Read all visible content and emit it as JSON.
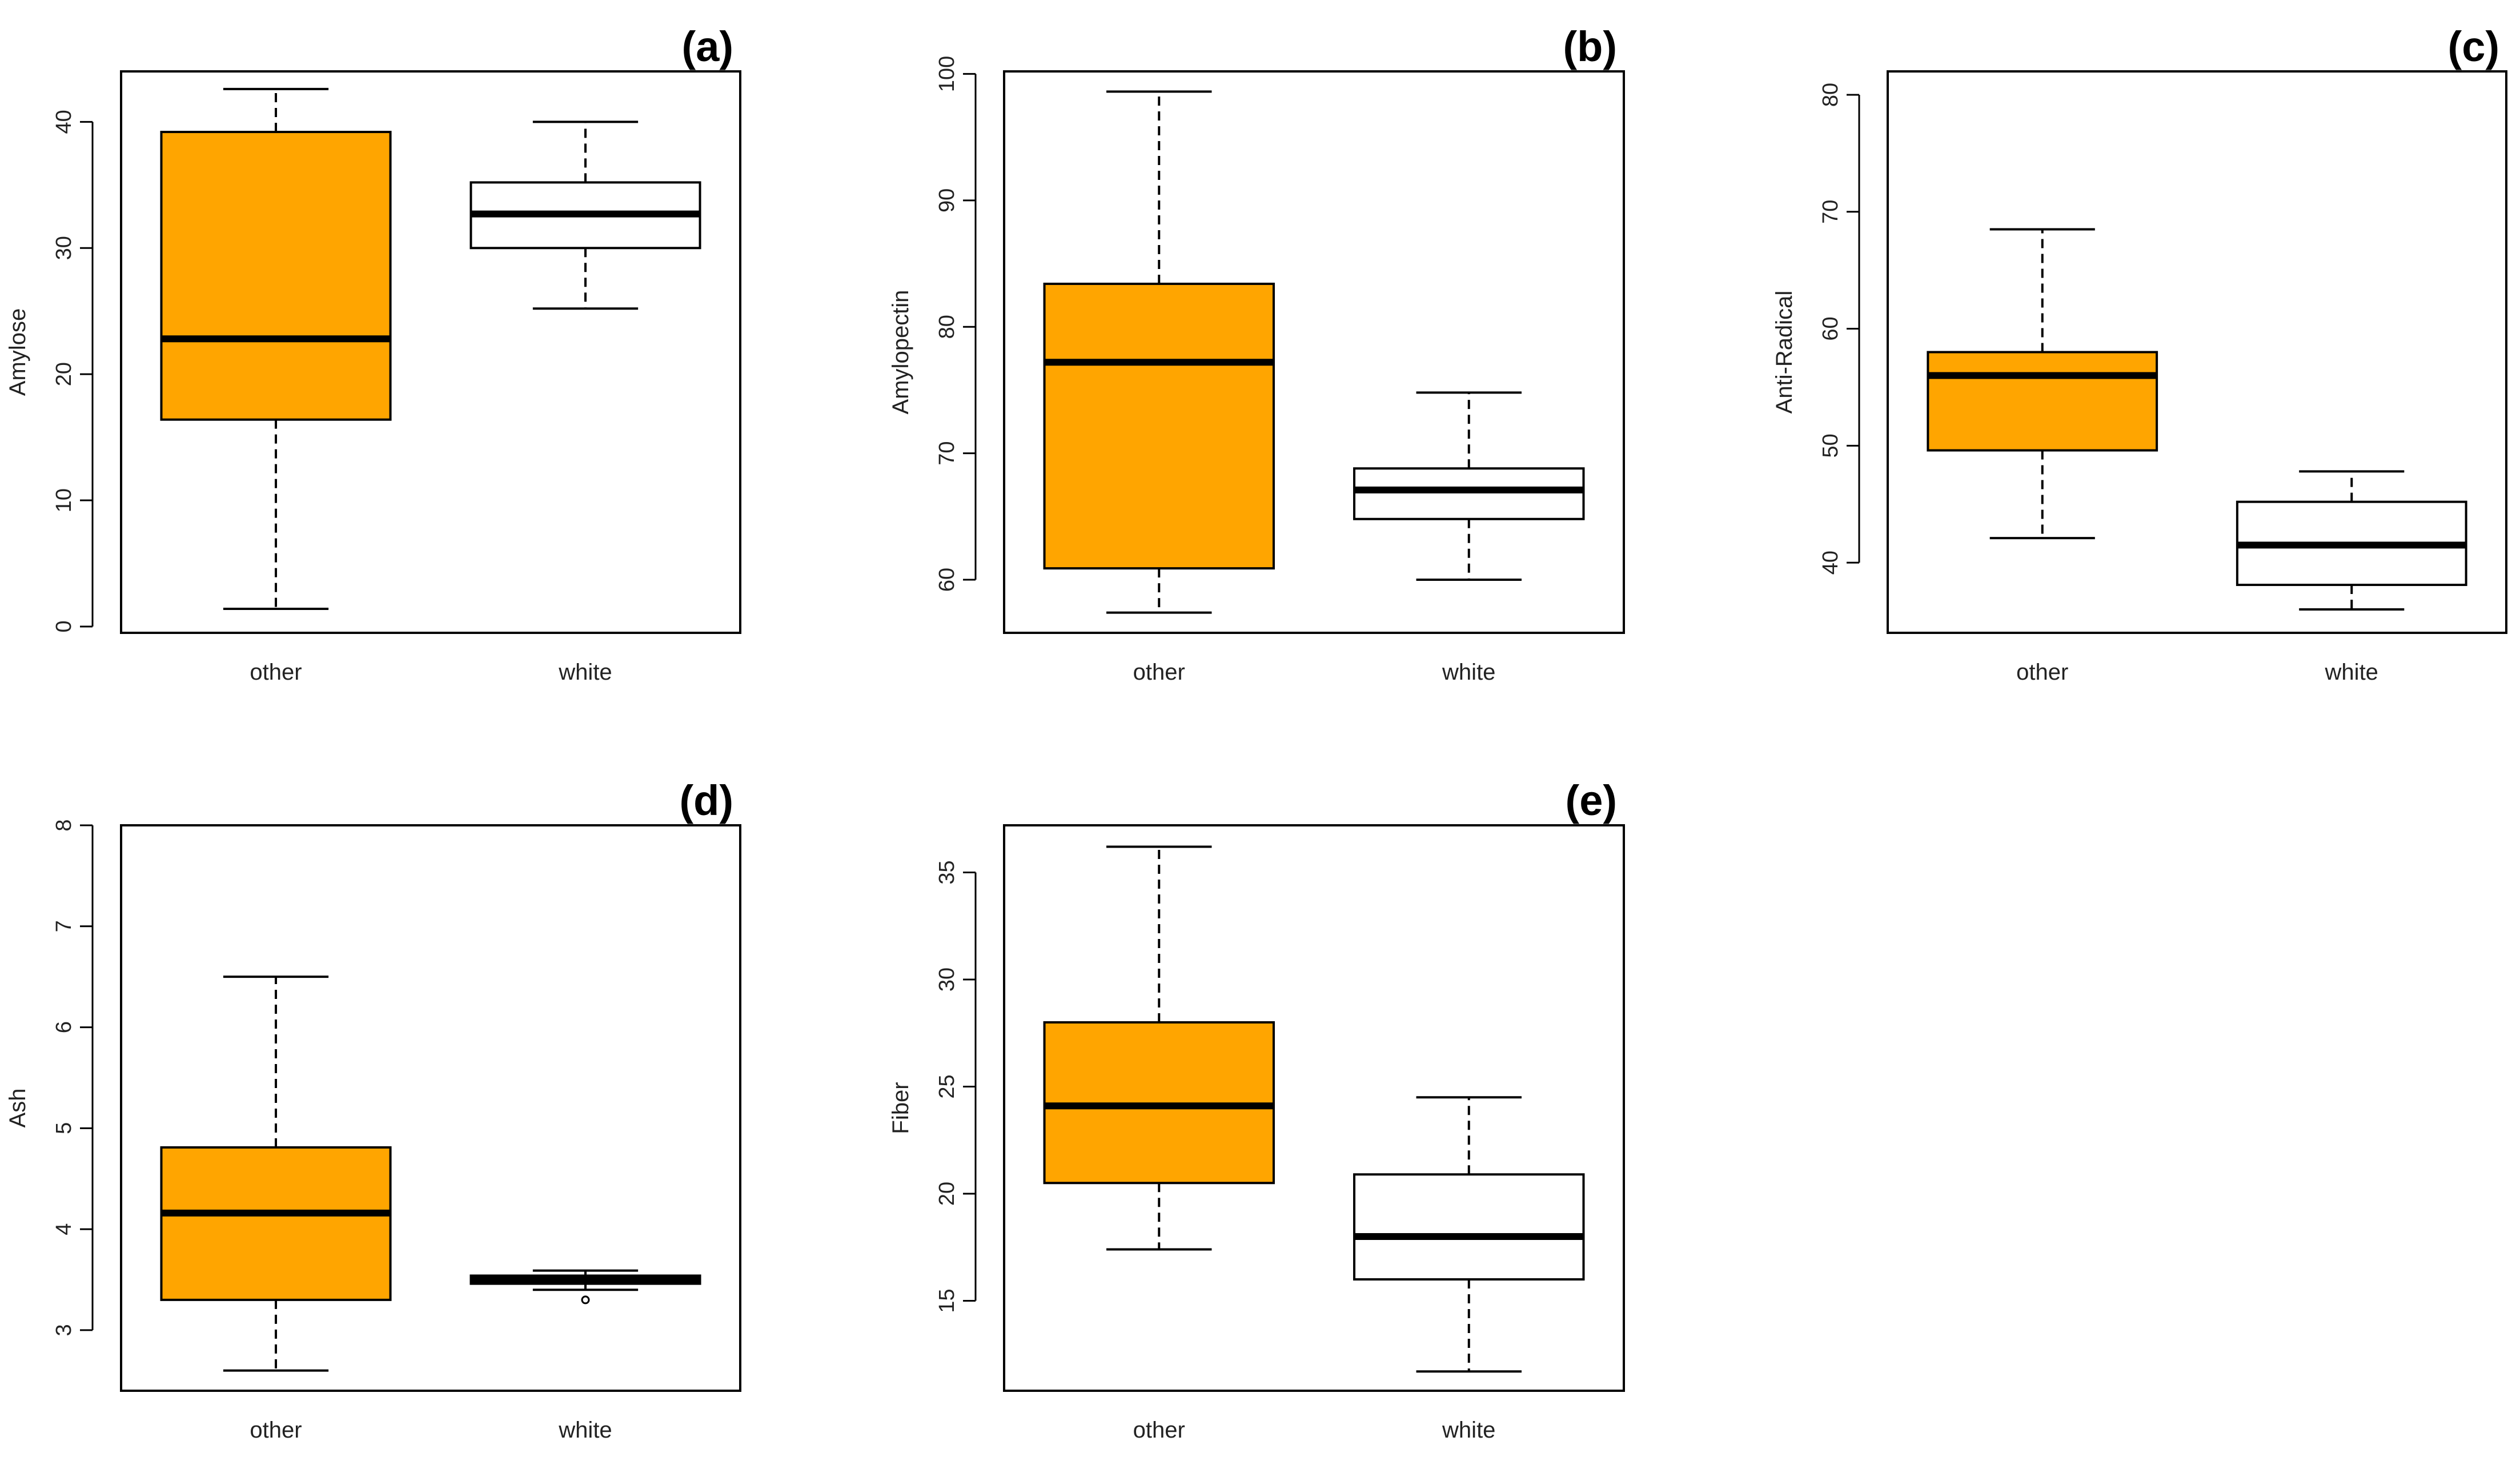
{
  "figure": {
    "colors": {
      "other_fill": "#FFA500",
      "white_fill": "#FFFFFF",
      "line": "#000000"
    }
  },
  "chart_data": [
    {
      "panel": "(a)",
      "type": "boxplot",
      "ylabel": "Amylose",
      "title": "",
      "xlabel": "",
      "categories": [
        "other",
        "white"
      ],
      "ylim": [
        -0.5,
        44
      ],
      "yticks": [
        0,
        10,
        20,
        30,
        40
      ],
      "boxes": [
        {
          "name": "other",
          "lower_whisker": 1.4,
          "q1": 16.4,
          "median": 22.8,
          "q3": 39.2,
          "upper_whisker": 42.6,
          "outliers": []
        },
        {
          "name": "white",
          "lower_whisker": 25.2,
          "q1": 30.0,
          "median": 32.7,
          "q3": 35.2,
          "upper_whisker": 40.0,
          "outliers": []
        }
      ]
    },
    {
      "panel": "(b)",
      "type": "boxplot",
      "ylabel": "Amylopectin",
      "title": "",
      "xlabel": "",
      "categories": [
        "other",
        "white"
      ],
      "ylim": [
        55.8,
        100.2
      ],
      "yticks": [
        60,
        70,
        80,
        90,
        100
      ],
      "boxes": [
        {
          "name": "other",
          "lower_whisker": 57.4,
          "q1": 60.9,
          "median": 77.2,
          "q3": 83.4,
          "upper_whisker": 98.6,
          "outliers": []
        },
        {
          "name": "white",
          "lower_whisker": 60.0,
          "q1": 64.8,
          "median": 67.1,
          "q3": 68.8,
          "upper_whisker": 74.8,
          "outliers": []
        }
      ]
    },
    {
      "panel": "(c)",
      "type": "boxplot",
      "ylabel": "Anti-Radical",
      "title": "",
      "xlabel": "",
      "categories": [
        "other",
        "white"
      ],
      "ylim": [
        34,
        82
      ],
      "yticks": [
        40,
        50,
        60,
        70,
        80
      ],
      "boxes": [
        {
          "name": "other",
          "lower_whisker": 42.1,
          "q1": 49.6,
          "median": 56.0,
          "q3": 58.0,
          "upper_whisker": 68.5,
          "outliers": []
        },
        {
          "name": "white",
          "lower_whisker": 36.0,
          "q1": 38.1,
          "median": 41.5,
          "q3": 45.2,
          "upper_whisker": 47.8,
          "outliers": []
        }
      ]
    },
    {
      "panel": "(d)",
      "type": "boxplot",
      "ylabel": "Ash",
      "title": "",
      "xlabel": "",
      "categories": [
        "other",
        "white"
      ],
      "ylim": [
        2.4,
        8.0
      ],
      "yticks": [
        3,
        4,
        5,
        6,
        7,
        8
      ],
      "boxes": [
        {
          "name": "other",
          "lower_whisker": 2.6,
          "q1": 3.3,
          "median": 4.16,
          "q3": 4.81,
          "upper_whisker": 6.5,
          "outliers": []
        },
        {
          "name": "white",
          "lower_whisker": 3.4,
          "q1": 3.46,
          "median": 3.5,
          "q3": 3.54,
          "upper_whisker": 3.59,
          "outliers": [
            3.3
          ]
        }
      ]
    },
    {
      "panel": "(e)",
      "type": "boxplot",
      "ylabel": "Fiber",
      "title": "",
      "xlabel": "",
      "categories": [
        "other",
        "white"
      ],
      "ylim": [
        10.8,
        37.2
      ],
      "yticks": [
        15,
        20,
        25,
        30,
        35
      ],
      "boxes": [
        {
          "name": "other",
          "lower_whisker": 17.4,
          "q1": 20.5,
          "median": 24.1,
          "q3": 28.0,
          "upper_whisker": 36.2,
          "outliers": []
        },
        {
          "name": "white",
          "lower_whisker": 11.7,
          "q1": 16.0,
          "median": 18.0,
          "q3": 20.9,
          "upper_whisker": 24.5,
          "outliers": []
        }
      ]
    }
  ]
}
